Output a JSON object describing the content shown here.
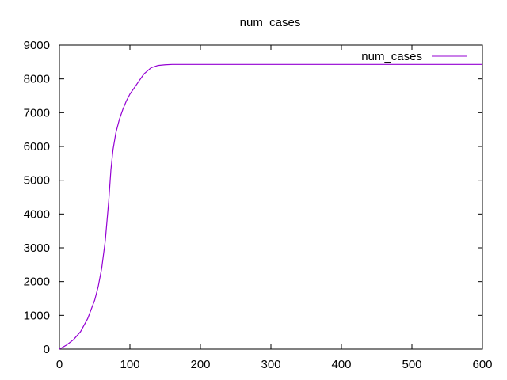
{
  "chart_data": {
    "type": "line",
    "title": "num_cases",
    "xlabel": "",
    "ylabel": "",
    "xlim": [
      0,
      600
    ],
    "ylim": [
      0,
      9000
    ],
    "x_ticks": [
      0,
      100,
      200,
      300,
      400,
      500,
      600
    ],
    "y_ticks": [
      0,
      1000,
      2000,
      3000,
      4000,
      5000,
      6000,
      7000,
      8000,
      9000
    ],
    "grid": false,
    "legend_position": "top-right",
    "series": [
      {
        "name": "num_cases",
        "color": "#9400d3",
        "x": [
          0,
          10,
          20,
          30,
          40,
          50,
          55,
          60,
          65,
          70,
          73,
          76,
          80,
          85,
          90,
          95,
          100,
          110,
          120,
          130,
          140,
          150,
          160,
          170,
          180,
          200,
          250,
          300,
          400,
          500,
          600
        ],
        "y": [
          0,
          120,
          280,
          520,
          900,
          1450,
          1850,
          2400,
          3200,
          4400,
          5300,
          5900,
          6400,
          6800,
          7100,
          7350,
          7550,
          7850,
          8150,
          8330,
          8400,
          8420,
          8430,
          8430,
          8430,
          8430,
          8430,
          8430,
          8430,
          8430,
          8430
        ]
      }
    ]
  }
}
